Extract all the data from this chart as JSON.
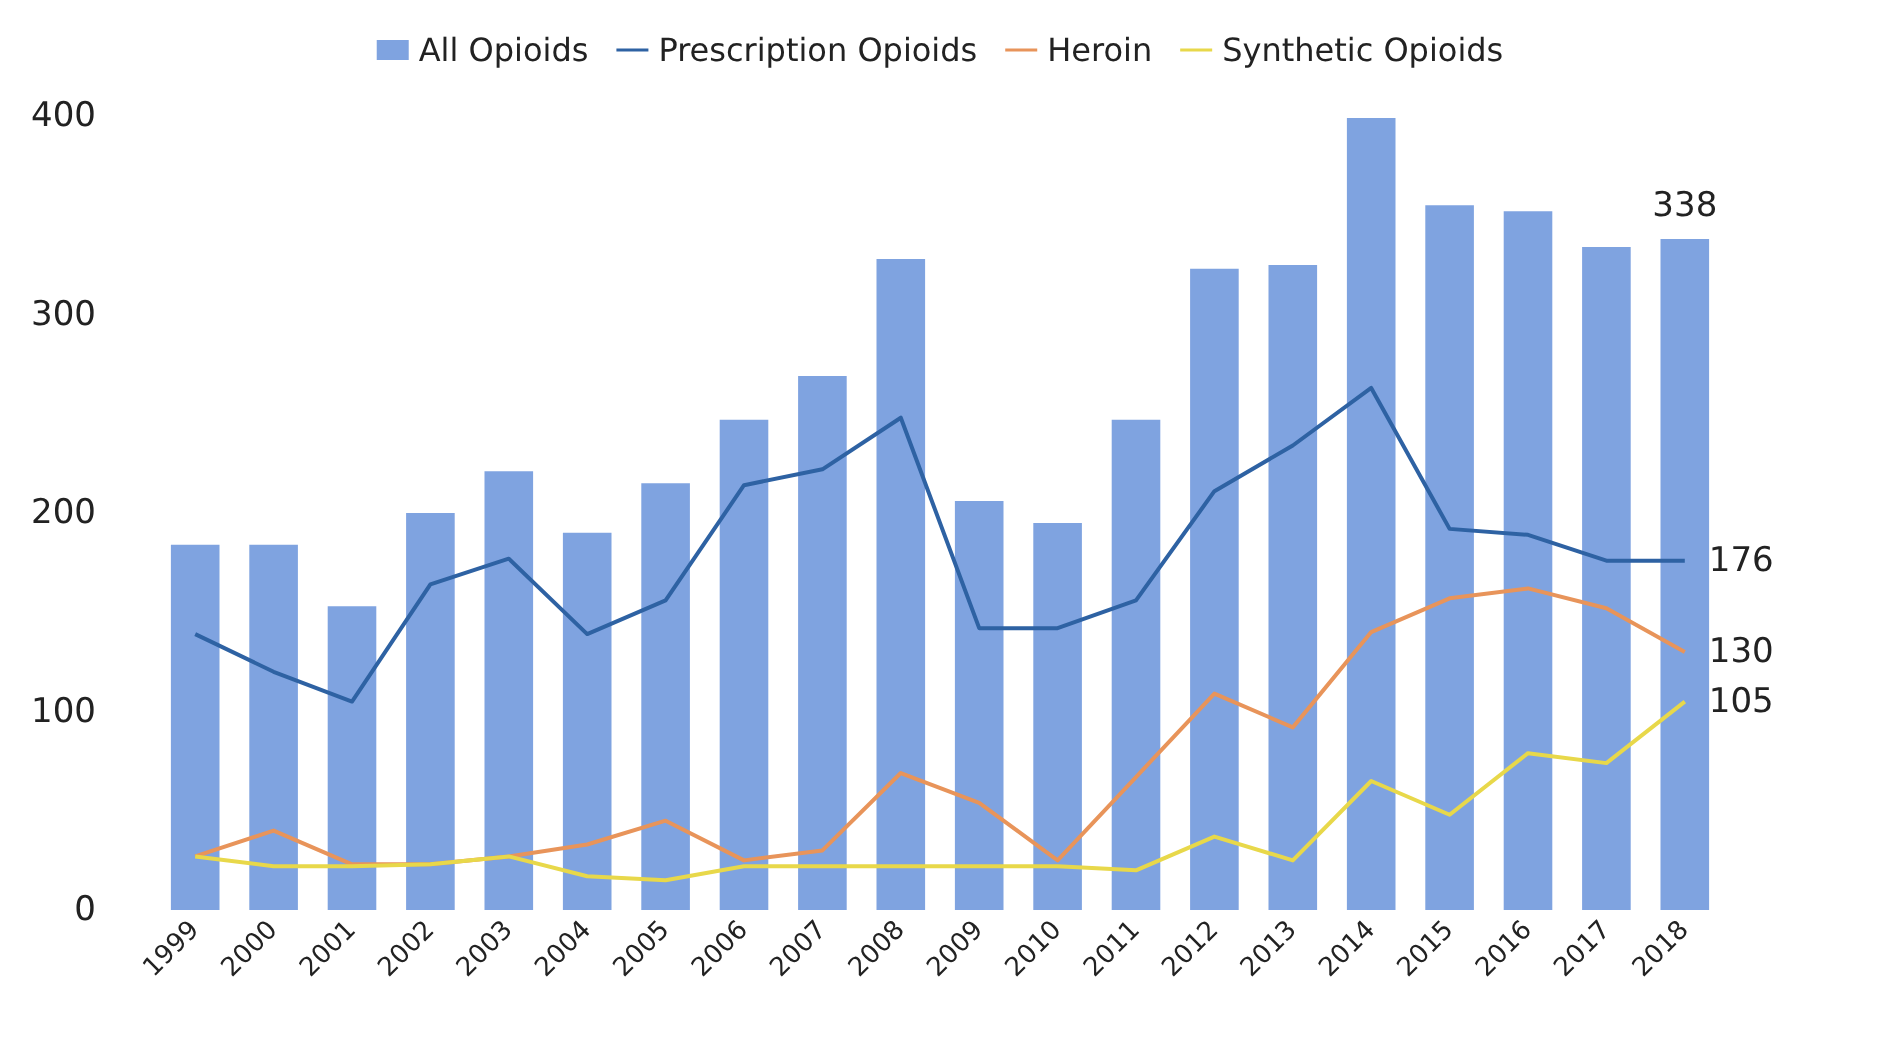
{
  "chart_data": {
    "type": "bar",
    "categories": [
      "1999",
      "2000",
      "2001",
      "2002",
      "2003",
      "2004",
      "2005",
      "2006",
      "2007",
      "2008",
      "2009",
      "2010",
      "2011",
      "2012",
      "2013",
      "2014",
      "2015",
      "2016",
      "2017",
      "2018"
    ],
    "series": [
      {
        "name": "All Opioids",
        "color": "#7fa3e0",
        "values": [
          184,
          184,
          153,
          200,
          221,
          190,
          215,
          247,
          269,
          328,
          206,
          195,
          247,
          323,
          325,
          399,
          355,
          352,
          334,
          338
        ],
        "value_labels": [
          null,
          null,
          null,
          null,
          null,
          null,
          null,
          null,
          null,
          null,
          null,
          null,
          null,
          null,
          null,
          null,
          null,
          null,
          null,
          "338"
        ]
      },
      {
        "name": "Prescription Opioids",
        "type": "line",
        "color": "#2e62a3",
        "values": [
          139,
          120,
          105,
          164,
          177,
          139,
          156,
          214,
          222,
          248,
          142,
          142,
          156,
          211,
          234,
          263,
          192,
          189,
          176,
          176
        ],
        "value_labels": [
          null,
          null,
          null,
          null,
          null,
          null,
          null,
          null,
          null,
          null,
          null,
          null,
          null,
          null,
          null,
          null,
          null,
          null,
          null,
          "176"
        ]
      },
      {
        "name": "Heroin",
        "type": "line",
        "color": "#e8945a",
        "values": [
          27,
          40,
          23,
          23,
          27,
          33,
          45,
          25,
          30,
          69,
          54,
          25,
          67,
          109,
          92,
          140,
          157,
          162,
          152,
          130
        ],
        "value_labels": [
          null,
          null,
          null,
          null,
          null,
          null,
          null,
          null,
          null,
          null,
          null,
          null,
          null,
          null,
          null,
          null,
          null,
          null,
          null,
          "130"
        ]
      },
      {
        "name": "Synthetic Opioids",
        "type": "line",
        "color": "#e8d84a",
        "values": [
          27,
          22,
          22,
          23,
          27,
          17,
          15,
          22,
          22,
          22,
          22,
          22,
          20,
          37,
          25,
          65,
          48,
          79,
          74,
          105
        ],
        "value_labels": [
          null,
          null,
          null,
          null,
          null,
          null,
          null,
          null,
          null,
          null,
          null,
          null,
          null,
          null,
          null,
          null,
          null,
          null,
          null,
          "105"
        ]
      }
    ],
    "ylim": [
      0,
      400
    ],
    "yticks": [
      0,
      100,
      200,
      300,
      400
    ],
    "grid": false,
    "legend": "top",
    "marker": "none",
    "line_style": "solid"
  }
}
